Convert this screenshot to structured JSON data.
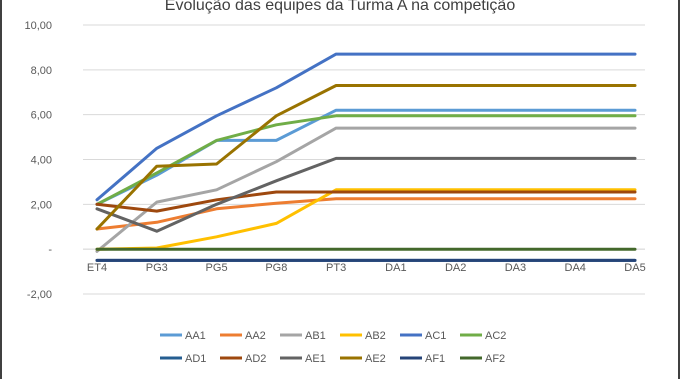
{
  "chart_data": {
    "type": "line",
    "title": "Evolução das equipes da Turma A na competição",
    "xlabel": "",
    "ylabel": "",
    "categories": [
      "ET4",
      "PG3",
      "PG5",
      "PG8",
      "PT3",
      "DA1",
      "DA2",
      "DA3",
      "DA4",
      "DA5"
    ],
    "ylim": [
      -2,
      10
    ],
    "yticks": [
      -2,
      0,
      2,
      4,
      6,
      8,
      10
    ],
    "ytick_labels": [
      "-2,00",
      "-",
      "2,00",
      "4,00",
      "6,00",
      "8,00",
      "10,00"
    ],
    "grid": true,
    "legend": "bottom",
    "series": [
      {
        "name": "AA1",
        "color": "#5B9BD5",
        "values": [
          2.0,
          3.3,
          4.85,
          4.85,
          6.2,
          6.2,
          6.2,
          6.2,
          6.2,
          6.2
        ]
      },
      {
        "name": "AA2",
        "color": "#ED7D31",
        "values": [
          0.9,
          1.2,
          1.8,
          2.05,
          2.25,
          2.25,
          2.25,
          2.25,
          2.25,
          2.25
        ]
      },
      {
        "name": "AB1",
        "color": "#A5A5A5",
        "values": [
          -0.1,
          2.1,
          2.65,
          3.9,
          5.4,
          5.4,
          5.4,
          5.4,
          5.4,
          5.4
        ]
      },
      {
        "name": "AB2",
        "color": "#FFC000",
        "values": [
          0.0,
          0.05,
          0.55,
          1.15,
          2.65,
          2.65,
          2.65,
          2.65,
          2.65,
          2.65
        ]
      },
      {
        "name": "AC1",
        "color": "#4472C4",
        "values": [
          2.2,
          4.5,
          5.95,
          7.2,
          8.7,
          8.7,
          8.7,
          8.7,
          8.7,
          8.7
        ]
      },
      {
        "name": "AC2",
        "color": "#70AD47",
        "values": [
          2.0,
          3.4,
          4.85,
          5.55,
          5.95,
          5.95,
          5.95,
          5.95,
          5.95,
          5.95
        ]
      },
      {
        "name": "AD1",
        "color": "#255E91",
        "values": [
          -0.5,
          -0.5,
          -0.5,
          -0.5,
          -0.5,
          -0.5,
          -0.5,
          -0.5,
          -0.5,
          -0.5
        ]
      },
      {
        "name": "AD2",
        "color": "#9E480E",
        "values": [
          2.0,
          1.7,
          2.2,
          2.55,
          2.55,
          2.55,
          2.55,
          2.55,
          2.55,
          2.55
        ]
      },
      {
        "name": "AE1",
        "color": "#636363",
        "values": [
          1.8,
          0.8,
          2.0,
          3.05,
          4.05,
          4.05,
          4.05,
          4.05,
          4.05,
          4.05
        ]
      },
      {
        "name": "AE2",
        "color": "#997300",
        "values": [
          0.9,
          3.7,
          3.8,
          5.95,
          7.3,
          7.3,
          7.3,
          7.3,
          7.3,
          7.3
        ]
      },
      {
        "name": "AF1",
        "color": "#264478",
        "values": [
          -0.5,
          -0.5,
          -0.5,
          -0.5,
          -0.5,
          -0.5,
          -0.5,
          -0.5,
          -0.5,
          -0.5
        ]
      },
      {
        "name": "AF2",
        "color": "#43682B",
        "values": [
          0.0,
          0.0,
          0.0,
          0.0,
          0.0,
          0.0,
          0.0,
          0.0,
          0.0,
          0.0
        ]
      }
    ]
  }
}
